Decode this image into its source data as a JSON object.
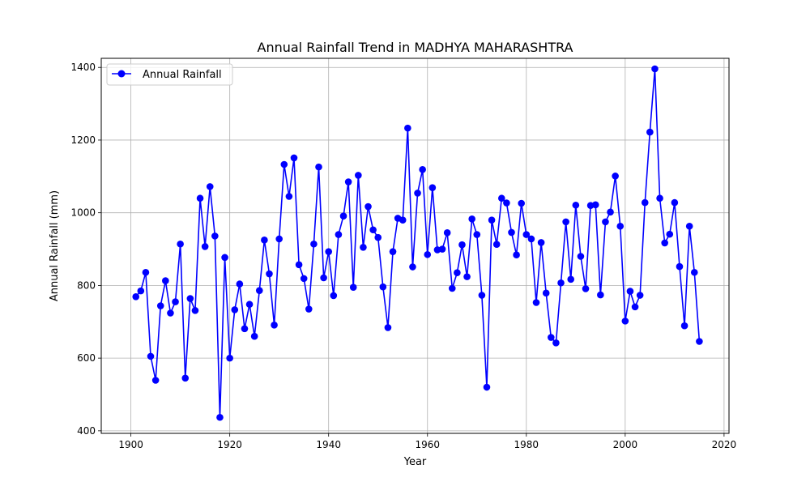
{
  "chart_data": {
    "type": "line",
    "title": "Annual Rainfall Trend in MADHYA MAHARASHTRA",
    "xlabel": "Year",
    "ylabel": "Annual Rainfall (mm)",
    "xlim": [
      1894,
      2021
    ],
    "ylim": [
      393,
      1425
    ],
    "x_ticks": [
      1900,
      1920,
      1940,
      1960,
      1980,
      2000,
      2020
    ],
    "y_ticks": [
      400,
      600,
      800,
      1000,
      1200,
      1400
    ],
    "grid": true,
    "legend": "upper-left",
    "series": [
      {
        "name": "Annual Rainfall",
        "color": "#0000ff",
        "marker": "circle",
        "x": [
          1901,
          1902,
          1903,
          1904,
          1905,
          1906,
          1907,
          1908,
          1909,
          1910,
          1911,
          1912,
          1913,
          1914,
          1915,
          1916,
          1917,
          1918,
          1919,
          1920,
          1921,
          1922,
          1923,
          1924,
          1925,
          1926,
          1927,
          1928,
          1929,
          1930,
          1931,
          1932,
          1933,
          1934,
          1935,
          1936,
          1937,
          1938,
          1939,
          1940,
          1941,
          1942,
          1943,
          1944,
          1945,
          1946,
          1947,
          1948,
          1949,
          1950,
          1951,
          1952,
          1953,
          1954,
          1955,
          1956,
          1957,
          1958,
          1959,
          1960,
          1961,
          1962,
          1963,
          1964,
          1965,
          1966,
          1967,
          1968,
          1969,
          1970,
          1971,
          1972,
          1973,
          1974,
          1975,
          1976,
          1977,
          1978,
          1979,
          1980,
          1981,
          1982,
          1983,
          1984,
          1985,
          1986,
          1987,
          1988,
          1989,
          1990,
          1991,
          1992,
          1993,
          1994,
          1995,
          1996,
          1997,
          1998,
          1999,
          2000,
          2001,
          2002,
          2003,
          2004,
          2005,
          2006,
          2007,
          2008,
          2009,
          2010,
          2011,
          2012,
          2013,
          2014,
          2015
        ],
        "values": [
          769,
          785,
          836,
          605,
          539,
          744,
          813,
          724,
          755,
          914,
          545,
          764,
          731,
          1040,
          907,
          1072,
          936,
          437,
          877,
          600,
          733,
          804,
          681,
          748,
          660,
          786,
          925,
          832,
          691,
          928,
          1133,
          1045,
          1151,
          857,
          819,
          735,
          914,
          1126,
          821,
          893,
          772,
          940,
          991,
          1085,
          795,
          1103,
          905,
          1017,
          953,
          932,
          796,
          684,
          893,
          985,
          980,
          1233,
          851,
          1054,
          1119,
          885,
          1069,
          898,
          900,
          945,
          792,
          835,
          912,
          824,
          983,
          940,
          773,
          520,
          980,
          913,
          1040,
          1027,
          946,
          884,
          1026,
          940,
          928,
          753,
          918,
          779,
          657,
          642,
          807,
          975,
          817,
          1021,
          880,
          791,
          1020,
          1022,
          774,
          975,
          1002,
          1101,
          963,
          702,
          784,
          741,
          773,
          1028,
          1222,
          1396,
          1040,
          917,
          941,
          1028,
          852,
          689,
          963,
          836,
          646
        ]
      }
    ]
  }
}
